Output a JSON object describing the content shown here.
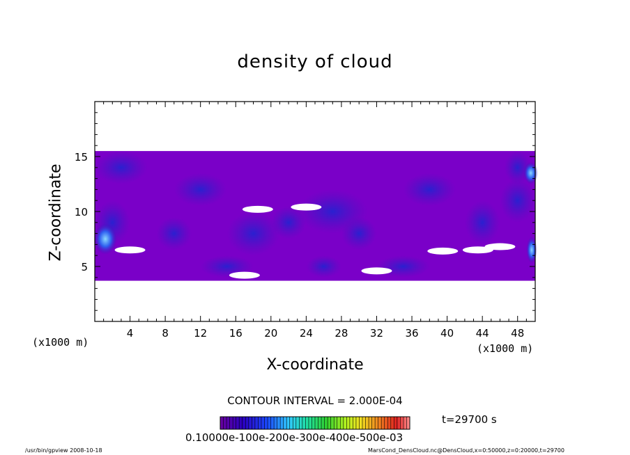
{
  "chart_data": {
    "type": "heatmap",
    "title": "density of cloud",
    "xlabel": "X-coordinate",
    "ylabel": "Z-coordinate",
    "x_unit": "(x1000 m)",
    "xlim": [
      0,
      50
    ],
    "ylim": [
      0,
      20
    ],
    "x_ticks": [
      4,
      8,
      12,
      16,
      20,
      24,
      28,
      32,
      36,
      40,
      44,
      48
    ],
    "y_ticks": [
      5,
      10,
      15
    ],
    "cloud_band_z": [
      3.7,
      15.5
    ],
    "contour_interval": "CONTOUR INTERVAL = 2.000E-04",
    "time_label": "t=29700 s",
    "colorbar_labels": "0.10000e-100e-200e-300e-400e-500e-03",
    "colorbar_range": [
      0,
      0.0022
    ],
    "colorbar_levels": 11,
    "colors": {
      "background": "#ffffff",
      "cloud_base": "#7a00c8",
      "cloud_dark": "#3510b8",
      "cloud_blue": "#2f5ff0",
      "cloud_light": "#8ad8ff"
    },
    "gaps": [
      {
        "x": 18.5,
        "z": 10.2
      },
      {
        "x": 24.0,
        "z": 10.4
      },
      {
        "x": 39.5,
        "z": 6.4
      },
      {
        "x": 43.5,
        "z": 6.5
      },
      {
        "x": 46.0,
        "z": 6.8
      },
      {
        "x": 17.0,
        "z": 4.2
      },
      {
        "x": 32.0,
        "z": 4.6
      },
      {
        "x": 4.0,
        "z": 6.5
      }
    ]
  },
  "footer": {
    "left": "/usr/bin/gpview   2008-10-18",
    "right": "MarsCond_DensCloud.nc@DensCloud,x=0:50000,z=0:20000,t=29700"
  }
}
